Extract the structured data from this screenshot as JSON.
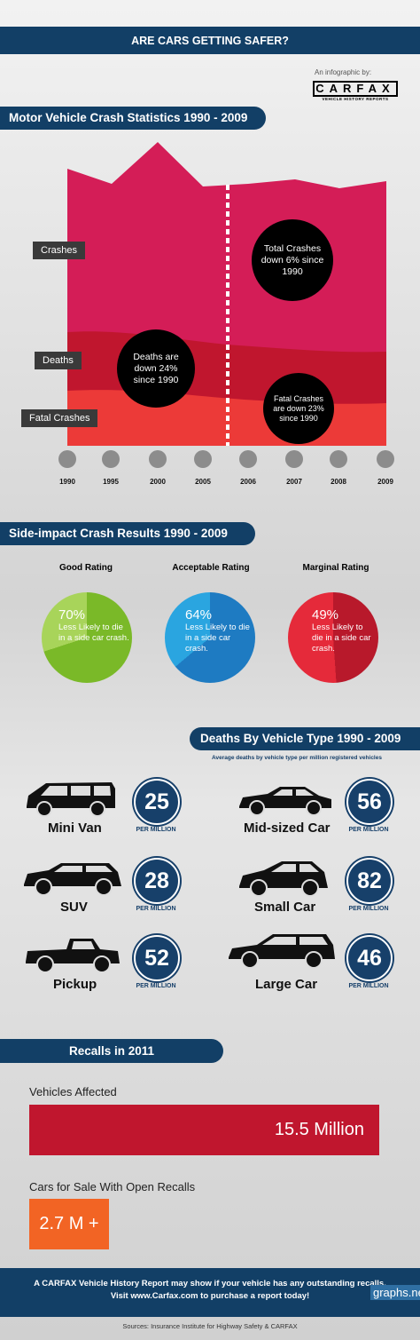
{
  "header": {
    "title": "ARE CARS GETTING SAFER?",
    "byline": "An infographic by:",
    "logo_text": "CARFAX",
    "logo_sub": "VEHICLE HISTORY REPORTS"
  },
  "crash": {
    "heading": "Motor Vehicle Crash Statistics 1990 - 2009",
    "labels": {
      "crashes": "Crashes",
      "deaths": "Deaths",
      "fatal": "Fatal Crashes"
    },
    "bubbles": {
      "total": "Total Crashes down 6% since 1990",
      "deaths": "Deaths are down 24% since 1990",
      "fatal": "Fatal Crashes are down 23% since 1990"
    },
    "years": [
      "1990",
      "1995",
      "2000",
      "2005",
      "2006",
      "2007",
      "2008",
      "2009"
    ],
    "colors": {
      "crashes": "#d41d57",
      "deaths": "#c0162e",
      "fatal": "#ec3a38"
    }
  },
  "side": {
    "heading": "Side-impact Crash Results 1990 - 2009",
    "ratings": [
      {
        "title": "Good Rating",
        "pct": "70%",
        "text": "Less Likely to die in a side car crash.",
        "color": "#7ab928",
        "light": "#a8d45a"
      },
      {
        "title": "Acceptable Rating",
        "pct": "64%",
        "text": "Less Likely to die in a side car crash.",
        "color": "#1e7bc2",
        "light": "#2aa5e0"
      },
      {
        "title": "Marginal Rating",
        "pct": "49%",
        "text": "Less Likely to die in a side car crash.",
        "color": "#b8192b",
        "light": "#e52a3a"
      }
    ]
  },
  "deaths": {
    "heading": "Deaths By Vehicle Type 1990 - 2009",
    "subheading": "Average deaths by vehicle type per million registered vehicles",
    "per_label": "PER MILLION",
    "vehicles": [
      {
        "name": "Mini Van",
        "value": "25"
      },
      {
        "name": "Mid-sized Car",
        "value": "56"
      },
      {
        "name": "SUV",
        "value": "28"
      },
      {
        "name": "Small Car",
        "value": "82"
      },
      {
        "name": "Pickup",
        "value": "52"
      },
      {
        "name": "Large Car",
        "value": "46"
      }
    ]
  },
  "recalls": {
    "heading": "Recalls in 2011",
    "affected_label": "Vehicles Affected",
    "affected_value": "15.5 Million",
    "forsale_label": "Cars for Sale With Open Recalls",
    "forsale_value": "2.7 M +"
  },
  "footer": {
    "line1": "A CARFAX Vehicle History Report may show if your vehicle has any outstanding recalls.",
    "line2": "Visit www.Carfax.com to purchase a report today!",
    "sources": "Sources: Insurance Institute for Highway Safety & CARFAX",
    "watermark": "graphs.net"
  }
}
